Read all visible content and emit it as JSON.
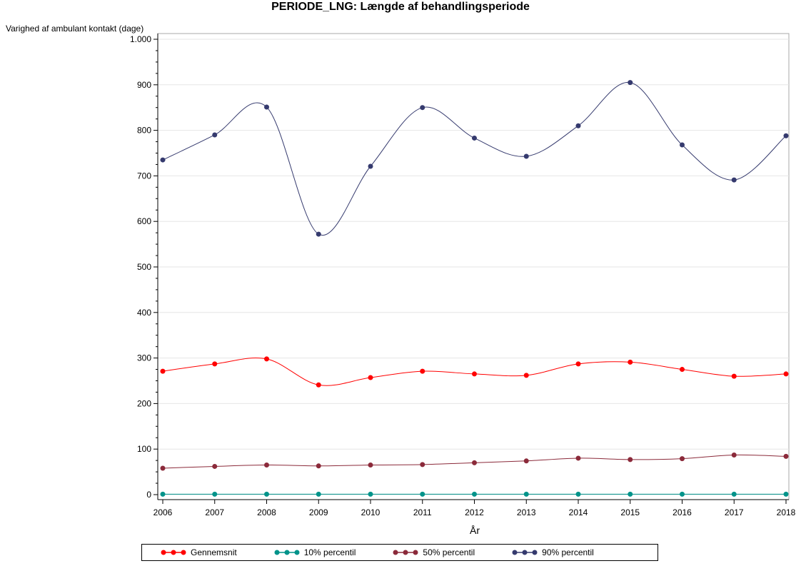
{
  "chart_data": {
    "type": "line",
    "title": "PERIODE_LNG: Længde af behandlingsperiode",
    "xlabel": "År",
    "ylabel": "Varighed af ambulant kontakt (dage)",
    "x": [
      2006,
      2007,
      2008,
      2009,
      2010,
      2011,
      2012,
      2013,
      2014,
      2015,
      2016,
      2017,
      2018
    ],
    "x_tick_labels": [
      "2006",
      "2007",
      "2008",
      "2009",
      "2010",
      "2011",
      "2012",
      "2013",
      "2014",
      "2015",
      "2016",
      "2017",
      "2018"
    ],
    "ylim": [
      0,
      1000
    ],
    "y_ticks": [
      0,
      100,
      200,
      300,
      400,
      500,
      600,
      700,
      800,
      900,
      1000
    ],
    "y_tick_labels": [
      "0",
      "100",
      "200",
      "300",
      "400",
      "500",
      "600",
      "700",
      "800",
      "900",
      "1.000"
    ],
    "grid": "horizontal",
    "legend_position": "bottom",
    "series": [
      {
        "name": "Gennemsnit",
        "color": "#ff0000",
        "values": [
          271,
          287,
          298,
          241,
          257,
          271,
          265,
          262,
          287,
          291,
          275,
          260,
          265
        ]
      },
      {
        "name": "10% percentil",
        "color": "#00938a",
        "values": [
          1,
          1,
          1,
          1,
          1,
          1,
          1,
          1,
          1,
          1,
          1,
          1,
          1
        ]
      },
      {
        "name": "50% percentil",
        "color": "#8b2a3a",
        "values": [
          58,
          62,
          65,
          63,
          65,
          66,
          70,
          74,
          80,
          77,
          79,
          87,
          84
        ]
      },
      {
        "name": "90% percentil",
        "color": "#353a6e",
        "values": [
          735,
          790,
          851,
          572,
          721,
          850,
          783,
          743,
          810,
          905,
          768,
          691,
          788
        ]
      }
    ]
  }
}
